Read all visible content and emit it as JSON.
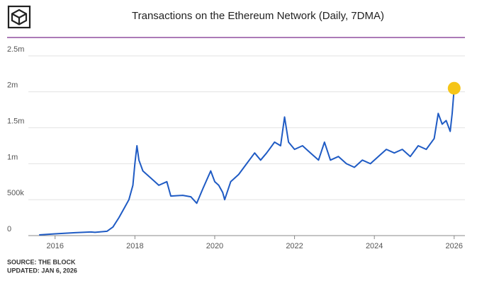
{
  "chart_data": {
    "type": "line",
    "title": "Transactions on the Ethereum Network (Daily, 7DMA)",
    "source": "SOURCE: THE BLOCK",
    "updated": "UPDATED: JAN 6, 2026",
    "x": [
      2015.6,
      2016.0,
      2016.5,
      2016.9,
      2017.0,
      2017.3,
      2017.45,
      2017.6,
      2017.75,
      2017.85,
      2017.95,
      2018.0,
      2018.05,
      2018.1,
      2018.2,
      2018.4,
      2018.6,
      2018.8,
      2018.9,
      2019.2,
      2019.4,
      2019.55,
      2019.7,
      2019.9,
      2020.0,
      2020.1,
      2020.2,
      2020.25,
      2020.4,
      2020.6,
      2020.8,
      2021.0,
      2021.15,
      2021.3,
      2021.5,
      2021.65,
      2021.75,
      2021.85,
      2022.0,
      2022.2,
      2022.4,
      2022.6,
      2022.75,
      2022.9,
      2023.1,
      2023.3,
      2023.5,
      2023.7,
      2023.9,
      2024.1,
      2024.3,
      2024.5,
      2024.7,
      2024.9,
      2025.1,
      2025.3,
      2025.5,
      2025.6,
      2025.7,
      2025.8,
      2025.9,
      2025.95,
      2026.0
    ],
    "series": [
      {
        "name": "Transactions",
        "color": "#1f5bc4",
        "values": [
          10000,
          25000,
          40000,
          50000,
          45000,
          60000,
          120000,
          250000,
          400000,
          500000,
          700000,
          1000000,
          1250000,
          1050000,
          900000,
          800000,
          700000,
          750000,
          550000,
          560000,
          540000,
          450000,
          650000,
          900000,
          750000,
          700000,
          600000,
          500000,
          750000,
          850000,
          1000000,
          1150000,
          1050000,
          1150000,
          1300000,
          1250000,
          1650000,
          1300000,
          1200000,
          1250000,
          1150000,
          1050000,
          1300000,
          1050000,
          1100000,
          1000000,
          950000,
          1050000,
          1000000,
          1100000,
          1200000,
          1150000,
          1200000,
          1100000,
          1250000,
          1200000,
          1350000,
          1700000,
          1550000,
          1600000,
          1450000,
          1700000,
          2050000
        ]
      }
    ],
    "highlight_color": "#f5c518",
    "xlim": [
      2015.33,
      2026.27
    ],
    "xticks": [
      2016,
      2018,
      2020,
      2022,
      2024,
      2026
    ],
    "ylim": [
      0,
      2500000
    ],
    "yticks": [
      0,
      {
        "value": 500000,
        "label": "500k"
      },
      {
        "value": 1000000,
        "label": "1m"
      },
      {
        "value": 1500000,
        "label": "1.5m"
      },
      {
        "value": 2000000,
        "label": "2m"
      },
      {
        "value": 2500000,
        "label": "2.5m"
      }
    ],
    "grid": true
  }
}
